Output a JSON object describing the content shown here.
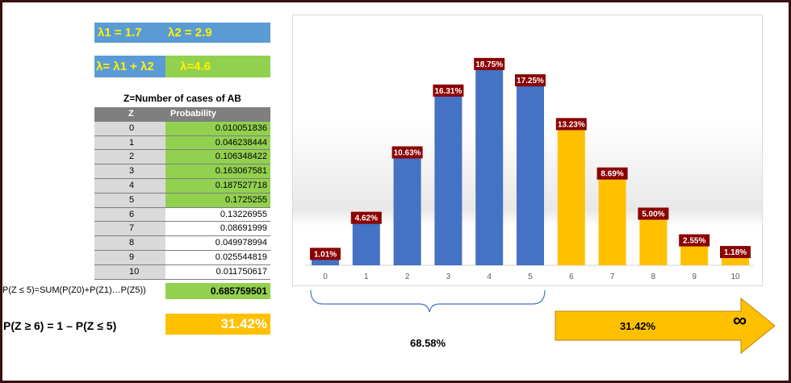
{
  "lambda": {
    "l1": "λ1 = 1.7",
    "l2": "λ2 = 2.9",
    "sum_formula": "λ= λ1 + λ2",
    "sum_value": "λ=4.6"
  },
  "table": {
    "caption": "Z=Number of cases of AB",
    "col_z": "Z",
    "col_p": "Probability",
    "rows": [
      {
        "z": "0",
        "p": "0.010051836"
      },
      {
        "z": "1",
        "p": "0.046238444"
      },
      {
        "z": "2",
        "p": "0.106348422"
      },
      {
        "z": "3",
        "p": "0.163067581"
      },
      {
        "z": "4",
        "p": "0.187527718"
      },
      {
        "z": "5",
        "p": "0.1725255"
      },
      {
        "z": "6",
        "p": "0.13226955"
      },
      {
        "z": "7",
        "p": "0.08691999"
      },
      {
        "z": "8",
        "p": "0.049978994"
      },
      {
        "z": "9",
        "p": "0.025544819"
      },
      {
        "z": "10",
        "p": "0.011750617"
      }
    ]
  },
  "cumulative": {
    "label": "P(Z ≤ 5)=SUM(P(Z0)+P(Z1)…P(Z5))",
    "value": "0.685759501"
  },
  "tail": {
    "label": "P(Z ≥ 6) = 1 – P(Z ≤ 5)",
    "value": "31.42%"
  },
  "brace_label": "68.58%",
  "arrow_label": "31.42%",
  "arrow_symbol": "∞",
  "colors": {
    "blue_bar": "#4472c4",
    "orange_bar": "#ffc000",
    "data_label_bg": "#8b0000",
    "green_cell": "#92d050",
    "blue_cell": "#5b9bd5",
    "lambda_text": "#fff200"
  },
  "chart_data": {
    "type": "bar",
    "categories": [
      "0",
      "1",
      "2",
      "3",
      "4",
      "5",
      "6",
      "7",
      "8",
      "9",
      "10"
    ],
    "values": [
      1.01,
      4.62,
      10.63,
      16.31,
      18.75,
      17.25,
      13.23,
      8.69,
      5.0,
      2.55,
      1.18
    ],
    "data_labels": [
      "1.01%",
      "4.62%",
      "10.63%",
      "16.31%",
      "18.75%",
      "17.25%",
      "13.23%",
      "8.69%",
      "5.00%",
      "2.55%",
      "1.18%"
    ],
    "bar_groups": [
      "blue",
      "blue",
      "blue",
      "blue",
      "blue",
      "blue",
      "orange",
      "orange",
      "orange",
      "orange",
      "orange"
    ],
    "ylim": [
      0,
      20
    ],
    "grid": false,
    "legend": "none"
  }
}
